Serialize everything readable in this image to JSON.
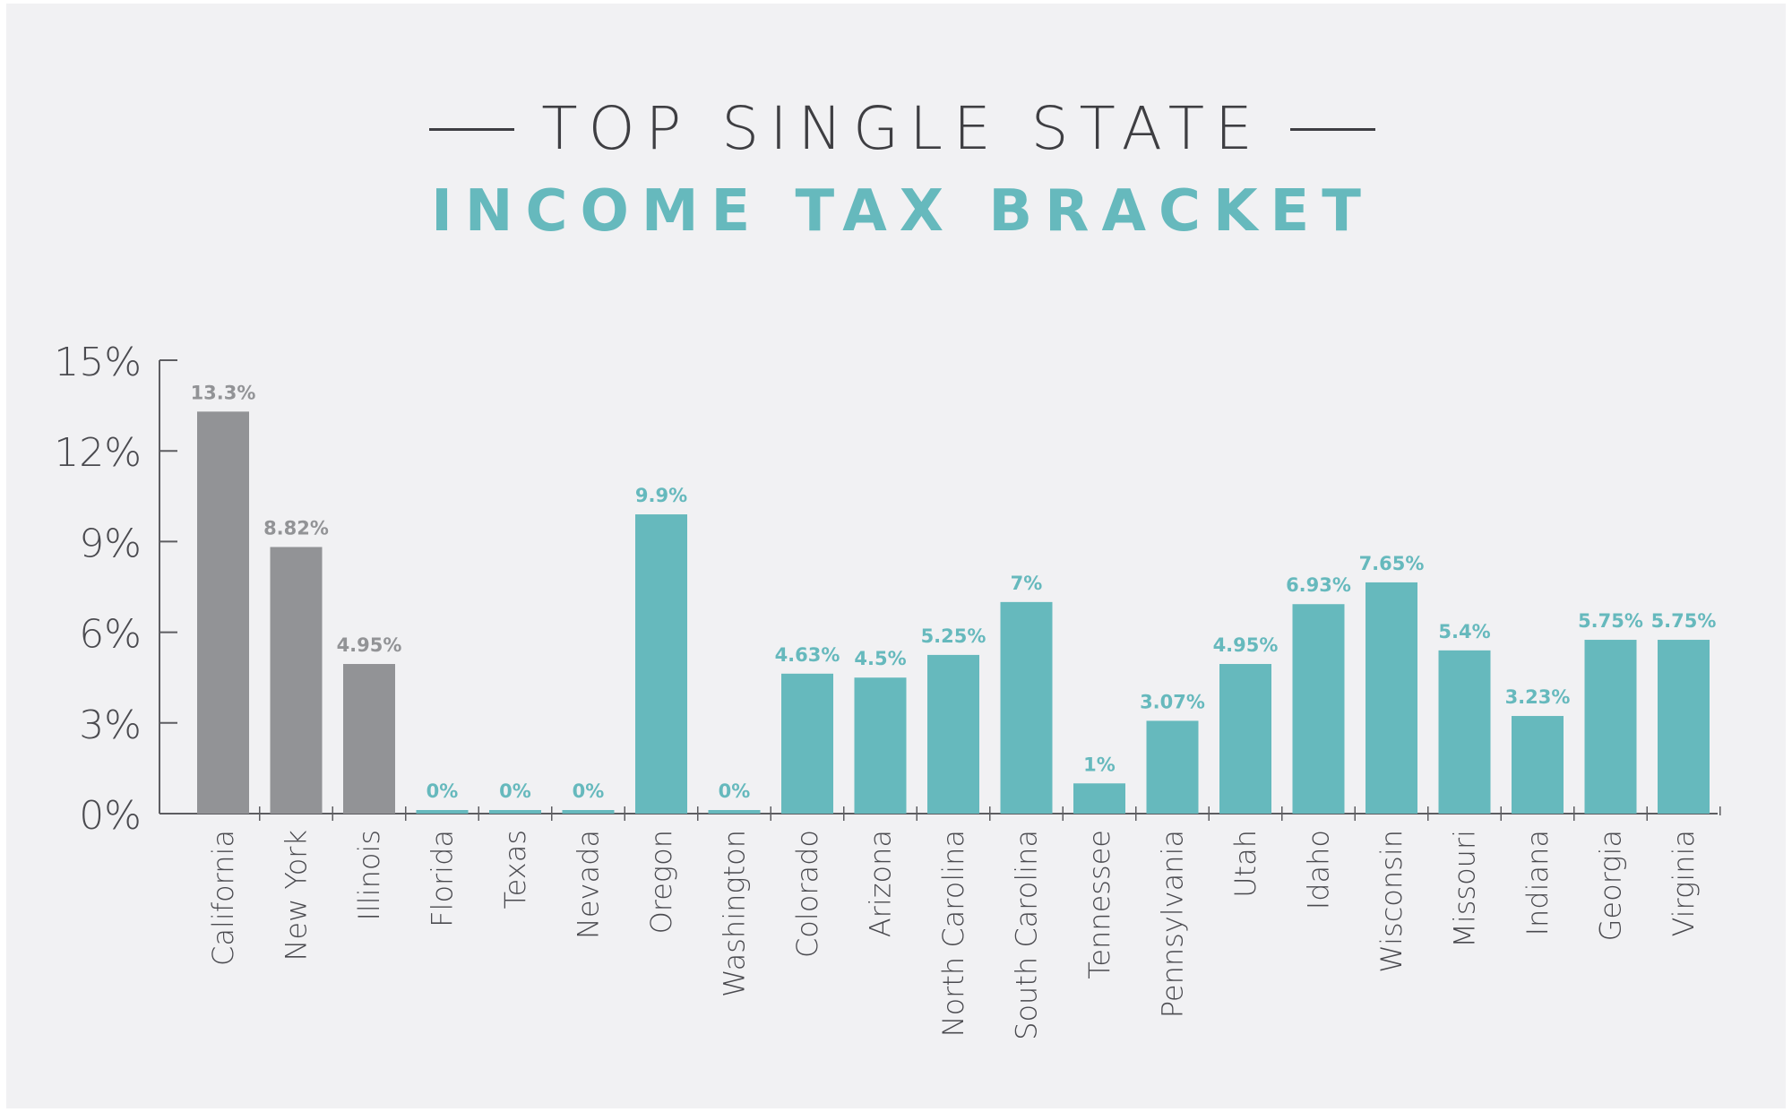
{
  "title": {
    "top": "TOP SINGLE STATE",
    "main": "INCOME TAX BRACKET"
  },
  "colors": {
    "gray": "#929396",
    "teal": "#66b9bd",
    "axis": "#5d5d61",
    "background": "#f1f1f3"
  },
  "chart_data": {
    "type": "bar",
    "categories": [
      "California",
      "New York",
      "Illinois",
      "Florida",
      "Texas",
      "Nevada",
      "Oregon",
      "Washington",
      "Colorado",
      "Arizona",
      "North Carolina",
      "South Carolina",
      "Tennessee",
      "Pennsylvania",
      "Utah",
      "Idaho",
      "Wisconsin",
      "Missouri",
      "Indiana",
      "Georgia",
      "Virginia"
    ],
    "values": [
      13.3,
      8.82,
      4.95,
      0,
      0,
      0,
      9.9,
      0,
      4.63,
      4.5,
      5.25,
      7,
      1,
      3.07,
      4.95,
      6.93,
      7.65,
      5.4,
      3.23,
      5.75,
      5.75
    ],
    "data_labels": [
      "13.3%",
      "8.82%",
      "4.95%",
      "0%",
      "0%",
      "0%",
      "9.9%",
      "0%",
      "4.63%",
      "4.5%",
      "5.25%",
      "7%",
      "1%",
      "3.07%",
      "4.95%",
      "6.93%",
      "7.65%",
      "5.4%",
      "3.23%",
      "5.75%",
      "5.75%"
    ],
    "bar_colors": [
      "gray",
      "gray",
      "gray",
      "teal",
      "teal",
      "teal",
      "teal",
      "teal",
      "teal",
      "teal",
      "teal",
      "teal",
      "teal",
      "teal",
      "teal",
      "teal",
      "teal",
      "teal",
      "teal",
      "teal",
      "teal"
    ],
    "yticks": [
      0,
      3,
      6,
      9,
      12,
      15
    ],
    "ytick_labels": [
      "0%",
      "3%",
      "6%",
      "9%",
      "12%",
      "15%"
    ],
    "ylim": [
      0,
      15
    ],
    "grid": false,
    "legend": "none",
    "xlabel": "",
    "ylabel": ""
  }
}
